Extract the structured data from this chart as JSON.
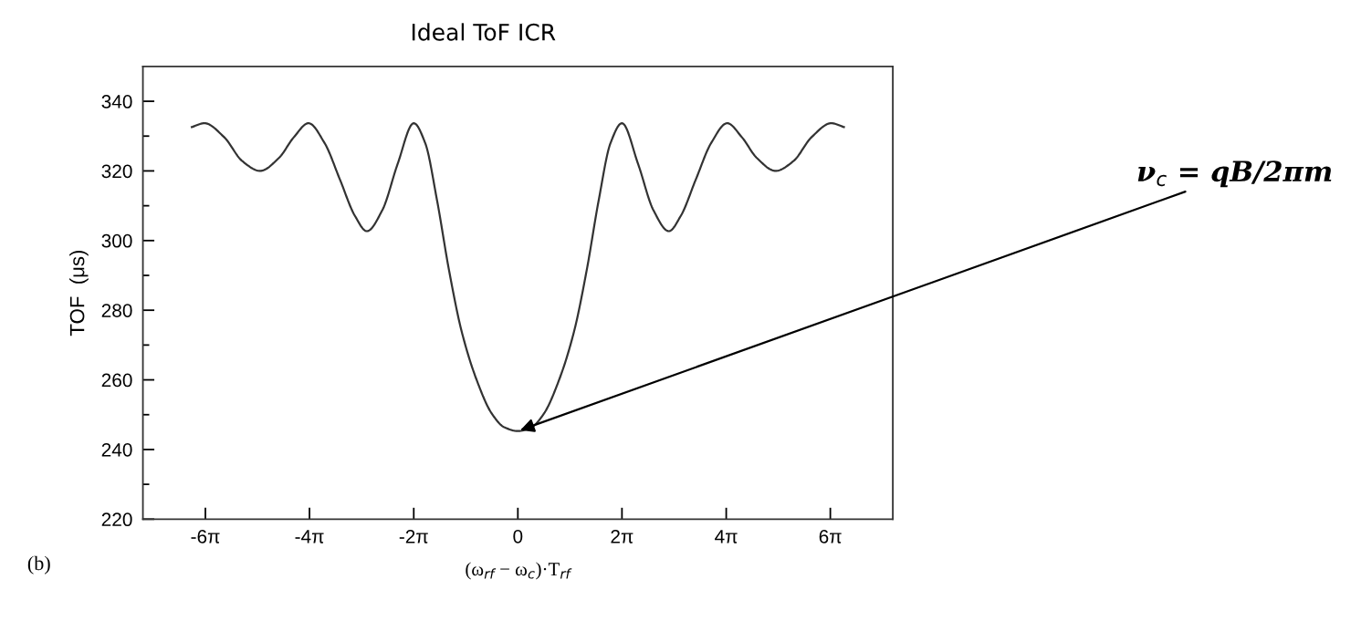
{
  "chart_data": {
    "type": "line",
    "title": "Ideal ToF ICR",
    "xlabel": "(ω$_{rf}$ − ω$_{c}$)·T$_{rf}$",
    "ylabel": "TOF  (μs)",
    "x": [
      -19.67,
      -18.91,
      -17.72,
      -16.62,
      -15.55,
      -14.42,
      -13.51,
      -12.63,
      -11.66,
      -10.74,
      -9.83,
      -9.11,
      -8.17,
      -7.26,
      -6.28,
      -5.59,
      -4.87,
      -4.15,
      -3.39,
      -2.48,
      -1.57,
      -0.82,
      0,
      0.82,
      1.57,
      2.48,
      3.39,
      4.15,
      4.87,
      5.59,
      6.28,
      7.26,
      8.17,
      9.11,
      9.83,
      10.74,
      11.66,
      12.63,
      13.51,
      14.42,
      15.55,
      16.62,
      17.72,
      18.91,
      19.67
    ],
    "series": [
      {
        "color": "#333333",
        "values": [
          332.6,
          333.7,
          329.7,
          322.8,
          320.0,
          323.7,
          329.7,
          333.7,
          328.0,
          317.6,
          307.1,
          302.7,
          308.8,
          321.9,
          333.7,
          328.0,
          311.4,
          291.4,
          273.9,
          259.9,
          250.3,
          246.4,
          245.3,
          246.4,
          250.3,
          259.9,
          273.9,
          291.4,
          311.4,
          328.0,
          333.7,
          321.9,
          308.8,
          302.7,
          307.1,
          317.6,
          328.0,
          333.7,
          329.7,
          323.7,
          320.0,
          322.8,
          329.7,
          333.7,
          332.6
        ]
      }
    ],
    "xlim": [
      -22.62,
      22.62
    ],
    "ylim": [
      220,
      350
    ],
    "xticks": [
      {
        "value": -18.85,
        "label": "-6π"
      },
      {
        "value": -12.57,
        "label": "-4π"
      },
      {
        "value": -6.28,
        "label": "-2π"
      },
      0,
      {
        "value": 6.28,
        "label": "2π"
      },
      {
        "value": 12.57,
        "label": "4π"
      },
      {
        "value": 18.85,
        "label": "6π"
      }
    ],
    "yticks": [
      220,
      {
        "value": 230,
        "label": null
      },
      240,
      {
        "value": 250,
        "label": null
      },
      260,
      {
        "value": 270,
        "label": null
      },
      280,
      {
        "value": 290,
        "label": null
      },
      300,
      {
        "value": 310,
        "label": null
      },
      320,
      {
        "value": 330,
        "label": null
      },
      340
    ],
    "grid": false,
    "legend": false,
    "marker": "none",
    "line_style": "solid",
    "annotations": [
      {
        "text": "ν$_{c}$ = qB/2πm",
        "x": 0,
        "y": 245.3
      },
      "(b)"
    ]
  }
}
